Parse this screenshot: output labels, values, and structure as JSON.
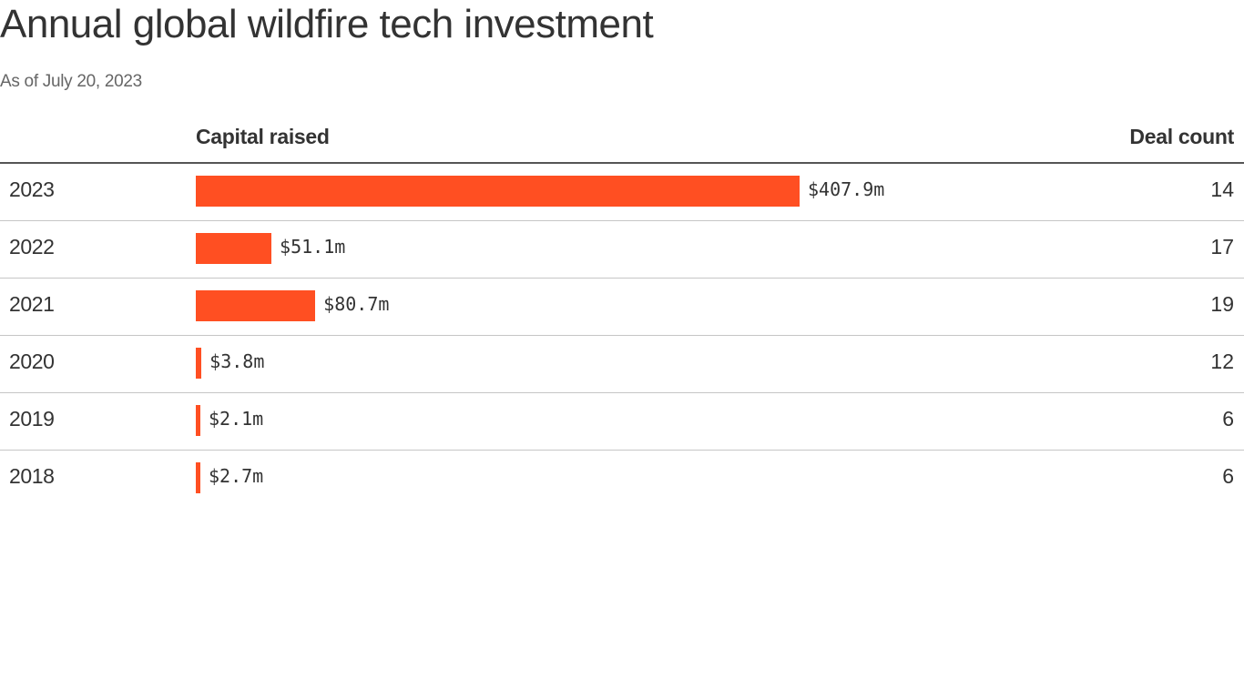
{
  "chart_data": {
    "type": "bar",
    "orientation": "horizontal",
    "title": "Annual global wildfire tech investment",
    "subtitle": "As of July 20, 2023",
    "columns": {
      "capital": "Capital raised",
      "deals": "Deal count"
    },
    "bar_color": "#ff4f22",
    "xlim": [
      0,
      407.9
    ],
    "rows": [
      {
        "year": "2023",
        "value": 407.9,
        "label": "$407.9m",
        "deals": "14"
      },
      {
        "year": "2022",
        "value": 51.1,
        "label": "$51.1m",
        "deals": "17"
      },
      {
        "year": "2021",
        "value": 80.7,
        "label": "$80.7m",
        "deals": "19"
      },
      {
        "year": "2020",
        "value": 3.8,
        "label": "$3.8m",
        "deals": "12"
      },
      {
        "year": "2019",
        "value": 2.1,
        "label": "$2.1m",
        "deals": "6"
      },
      {
        "year": "2018",
        "value": 2.7,
        "label": "$2.7m",
        "deals": "6"
      }
    ]
  }
}
